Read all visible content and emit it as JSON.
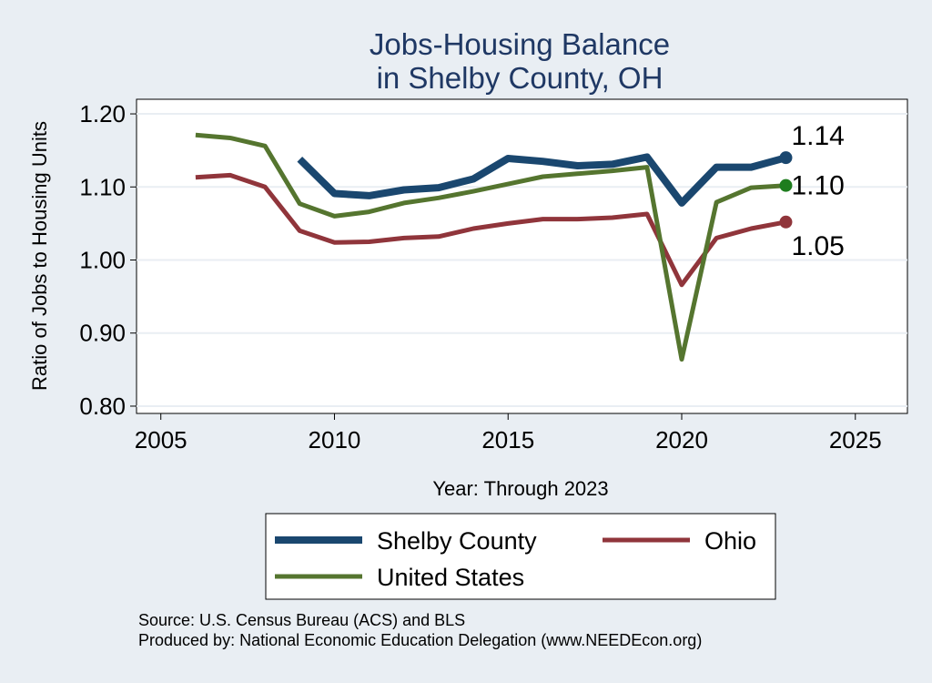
{
  "chart_data": {
    "type": "line",
    "title": [
      "Jobs-Housing Balance",
      "in Shelby County, OH"
    ],
    "xlabel": "Year: Through 2023",
    "ylabel": "Ratio of Jobs to Housing Units",
    "xlim": [
      2004.3,
      2026.5
    ],
    "ylim": [
      0.79,
      1.22
    ],
    "xticks": [
      2005,
      2010,
      2015,
      2020,
      2025
    ],
    "yticks": [
      0.8,
      0.9,
      1.0,
      1.1,
      1.2
    ],
    "ytick_labels": [
      "0.80",
      "0.90",
      "1.00",
      "1.10",
      "1.20"
    ],
    "grid": true,
    "colors": {
      "background": "#e9eef3",
      "plot_bg": "#ffffff",
      "grid": "#e9eef3",
      "title": "#1f3864"
    },
    "series": [
      {
        "name": "Shelby County",
        "color": "#1a476f",
        "width": 8,
        "x": [
          2009,
          2010,
          2011,
          2012,
          2013,
          2014,
          2015,
          2016,
          2017,
          2018,
          2019,
          2020,
          2021,
          2022,
          2023
        ],
        "y": [
          1.138,
          1.091,
          1.088,
          1.096,
          1.099,
          1.111,
          1.139,
          1.135,
          1.129,
          1.131,
          1.141,
          1.078,
          1.127,
          1.127,
          1.14
        ],
        "end_label": "1.14"
      },
      {
        "name": "Ohio",
        "color": "#90353b",
        "width": 5,
        "x": [
          2006,
          2007,
          2008,
          2009,
          2010,
          2011,
          2012,
          2013,
          2014,
          2015,
          2016,
          2017,
          2018,
          2019,
          2020,
          2021,
          2022,
          2023
        ],
        "y": [
          1.113,
          1.116,
          1.1,
          1.04,
          1.024,
          1.025,
          1.03,
          1.032,
          1.043,
          1.05,
          1.056,
          1.056,
          1.058,
          1.063,
          0.966,
          1.03,
          1.043,
          1.052
        ],
        "end_label": "1.05"
      },
      {
        "name": "United States",
        "color": "#55752f",
        "width": 5,
        "x": [
          2006,
          2007,
          2008,
          2009,
          2010,
          2011,
          2012,
          2013,
          2014,
          2015,
          2016,
          2017,
          2018,
          2019,
          2020,
          2021,
          2022,
          2023
        ],
        "y": [
          1.171,
          1.167,
          1.156,
          1.077,
          1.06,
          1.066,
          1.078,
          1.085,
          1.094,
          1.104,
          1.114,
          1.118,
          1.122,
          1.127,
          0.864,
          1.079,
          1.099,
          1.102
        ],
        "end_label": "1.10",
        "end_marker_color": "#1e7d1e"
      }
    ],
    "legend": {
      "position": "bottom",
      "order": [
        "Shelby County",
        "Ohio",
        "United States"
      ]
    },
    "notes": [
      "Source: U.S. Census Bureau (ACS) and BLS",
      "Produced by: National Economic Education Delegation (www.NEEDEcon.org)"
    ]
  }
}
